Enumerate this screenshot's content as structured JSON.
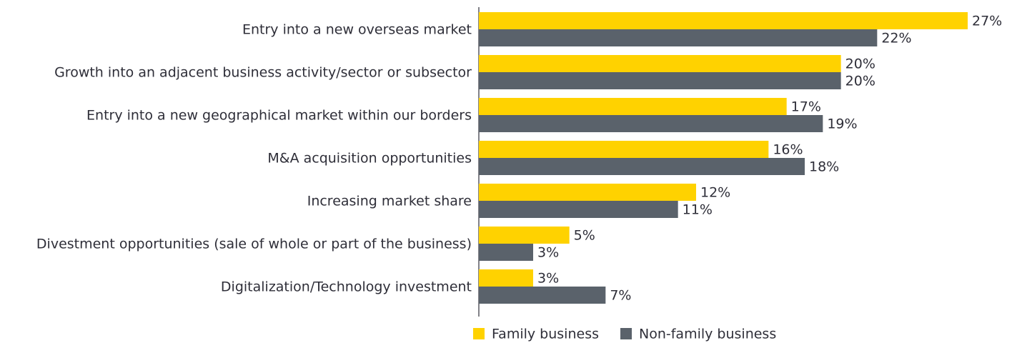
{
  "chart_data": {
    "type": "bar",
    "orientation": "horizontal",
    "categories": [
      "Entry into a new overseas market",
      "Growth into an adjacent business activity/sector or subsector",
      "Entry into a new geographical market within our borders",
      "M&A acquisition opportunities",
      "Increasing market share",
      "Divestment opportunities (sale of whole or part of the business)",
      "Digitalization/Technology investment"
    ],
    "series": [
      {
        "name": "Family business",
        "color": "#ffd200",
        "values": [
          27,
          20,
          17,
          16,
          12,
          5,
          3
        ],
        "value_labels": [
          "27%",
          "20%",
          "17%",
          "16%",
          "12%",
          "5%",
          "3%"
        ]
      },
      {
        "name": "Non-family business",
        "color": "#5a626b",
        "values": [
          22,
          20,
          19,
          18,
          11,
          3,
          7
        ],
        "value_labels": [
          "22%",
          "20%",
          "19%",
          "18%",
          "11%",
          "3%",
          "7%"
        ]
      }
    ],
    "legend": "bottom"
  }
}
